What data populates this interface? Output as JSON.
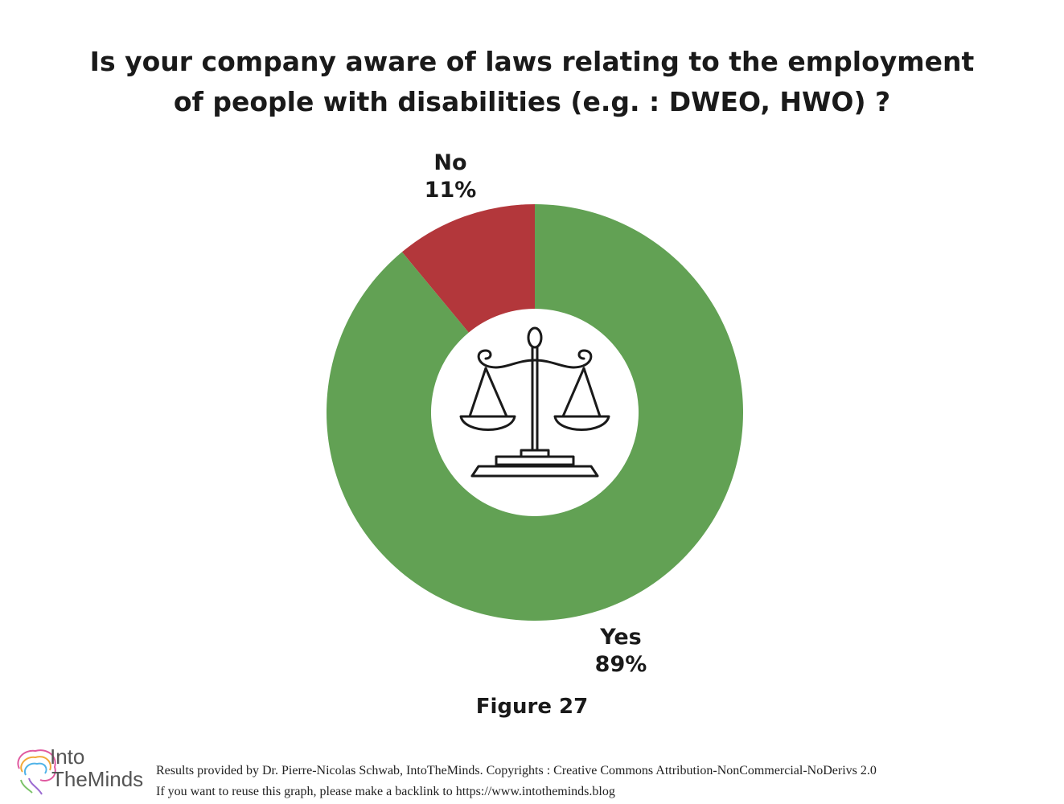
{
  "title_line1": "Is your company aware of laws relating to the employment",
  "title_line2": "of people with disabilities  (e.g. : DWEO, HWO) ?",
  "chart_data": {
    "type": "pie",
    "style": "donut",
    "title": "Is your company aware of laws relating to the employment of people with disabilities  (e.g. : DWEO, HWO) ?",
    "categories": [
      "No",
      "Yes"
    ],
    "values": [
      11,
      89
    ],
    "value_labels": [
      "11%",
      "89%"
    ],
    "colors": [
      "#b3373b",
      "#62a154"
    ],
    "center_icon": "scales-of-justice-icon"
  },
  "figure_caption": "Figure 27",
  "logo": {
    "line1": "Into",
    "line2": "TheMinds",
    "icon": "brain-icon"
  },
  "footer_line1": "Results provided by Dr. Pierre-Nicolas Schwab, IntoTheMinds. Copyrights : Creative Commons Attribution-NonCommercial-NoDerivs 2.0",
  "footer_line2": "If you want to reuse this graph, please make a backlink to https://www.intotheminds.blog"
}
